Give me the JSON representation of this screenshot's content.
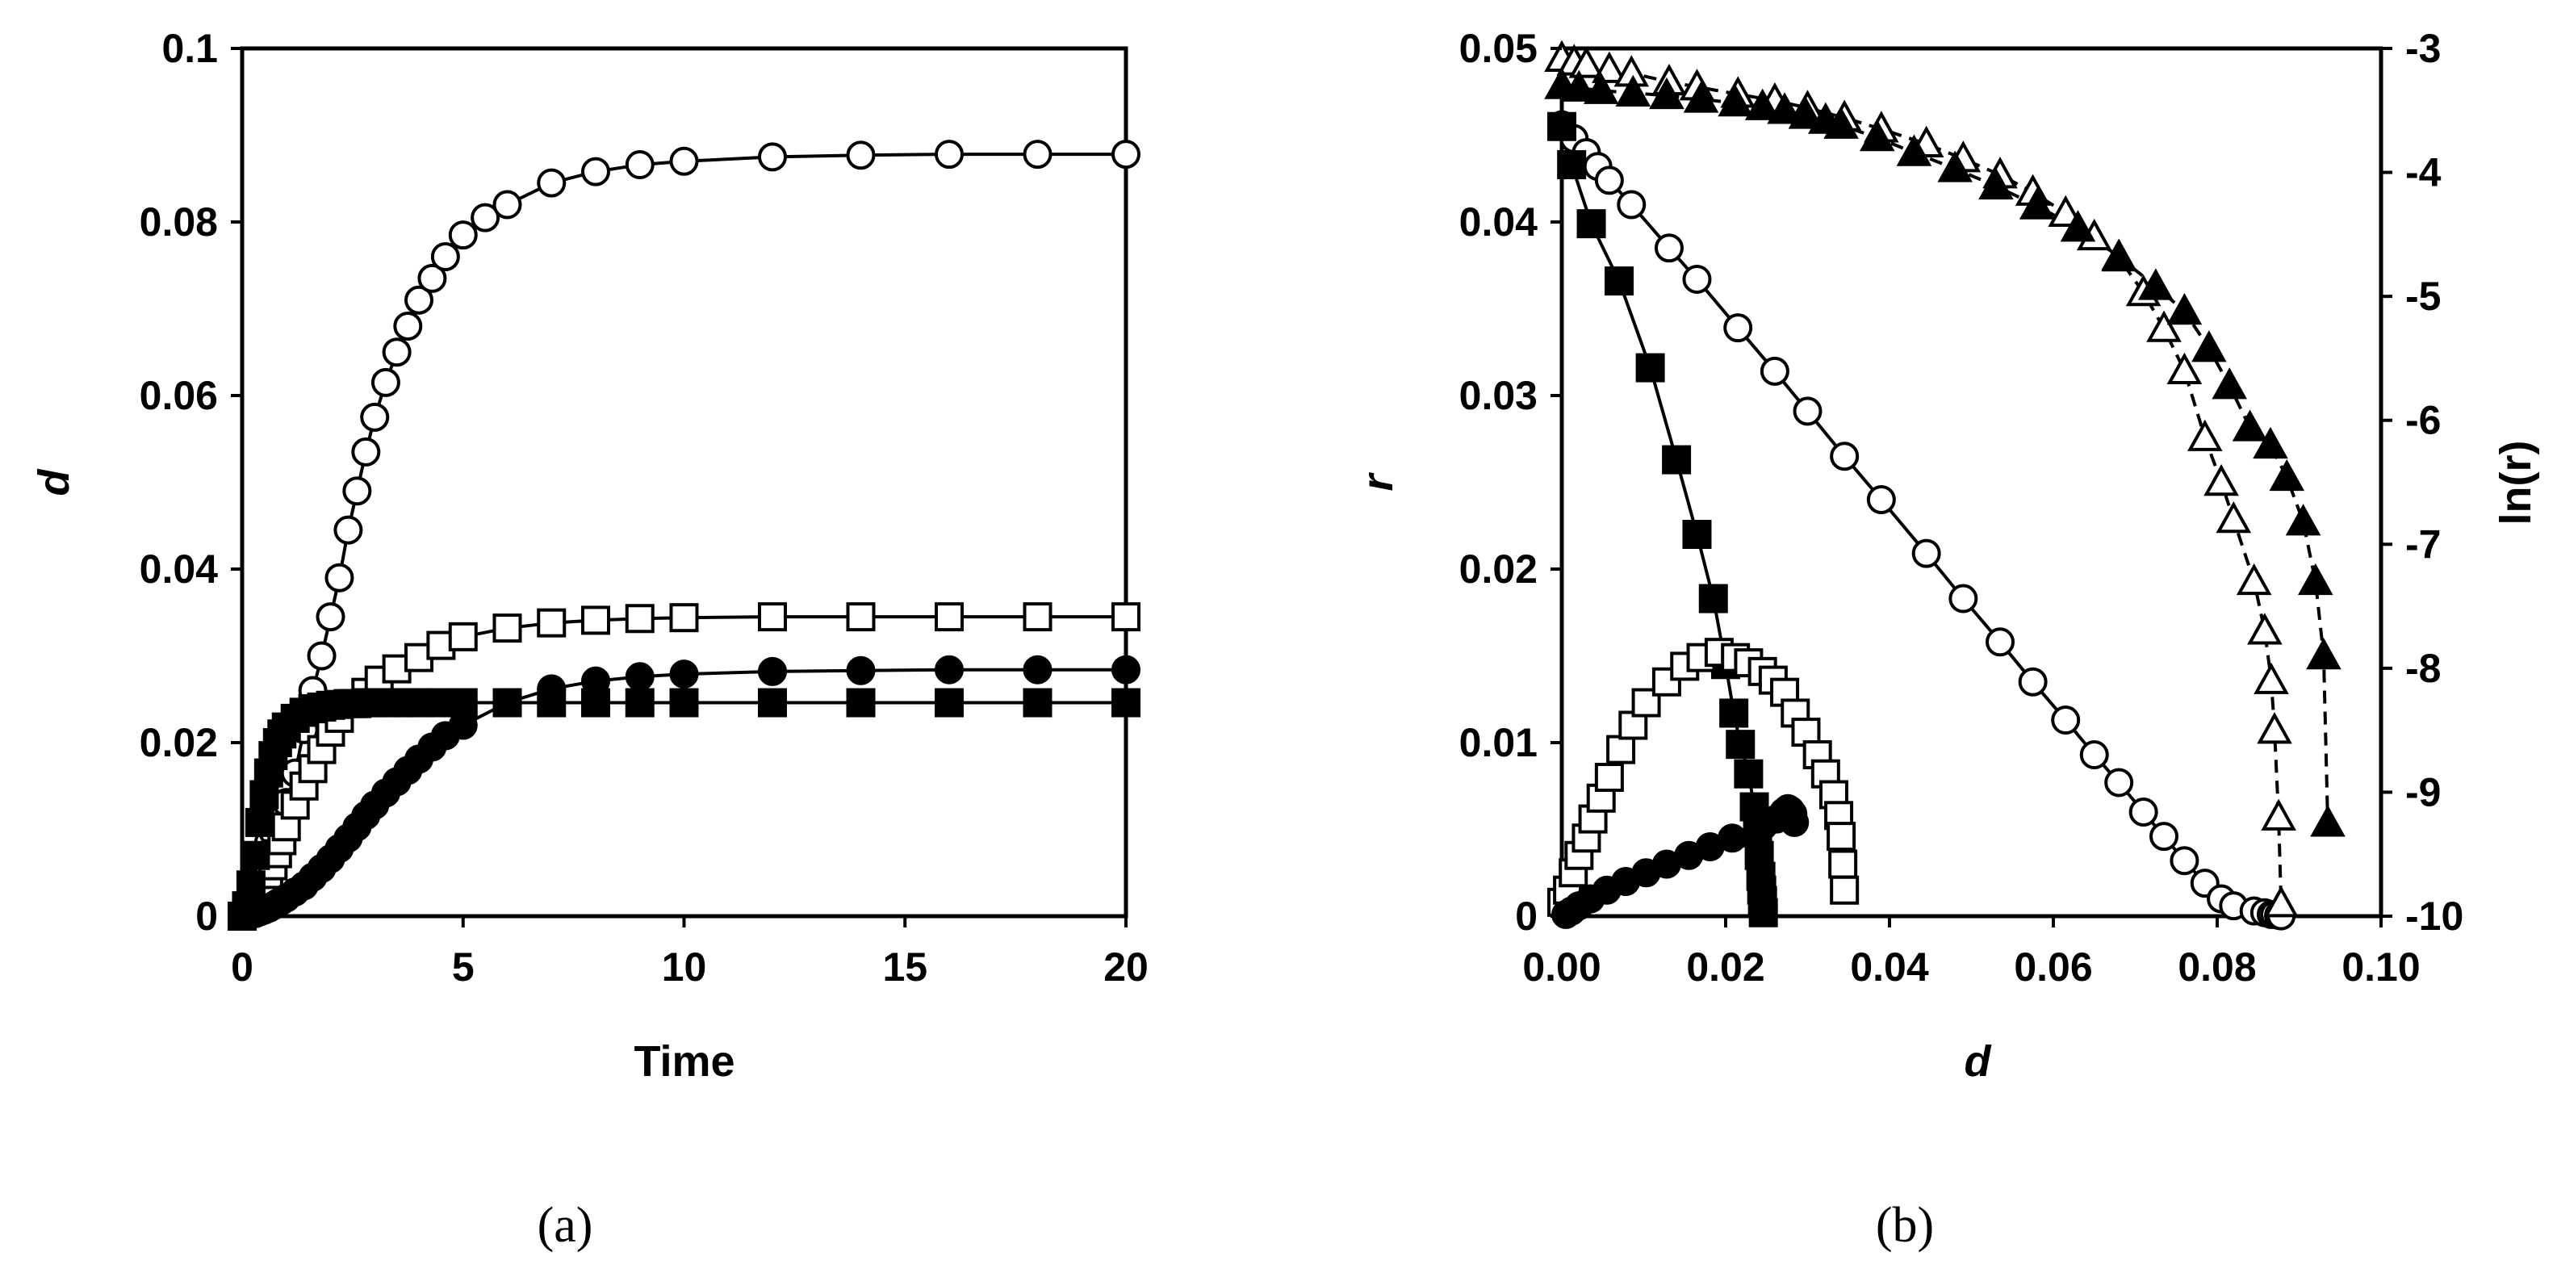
{
  "chart_data": [
    {
      "type": "scatter",
      "panel_label": "(a)",
      "xlabel": "Time",
      "ylabel": "d",
      "xlim": [
        0,
        20
      ],
      "ylim": [
        0,
        0.1
      ],
      "xticks": [
        "0",
        "5",
        "10",
        "15",
        "20"
      ],
      "yticks": [
        "0",
        "0.02",
        "0.04",
        "0.06",
        "0.08",
        "0.1"
      ],
      "grid": false,
      "legend": "none",
      "series": [
        {
          "marker": "open-circle",
          "line": "solid",
          "x": [
            0,
            0.1,
            0.2,
            0.3,
            0.4,
            0.5,
            0.6,
            0.7,
            0.8,
            0.9,
            1,
            1.2,
            1.4,
            1.6,
            1.8,
            2,
            2.2,
            2.4,
            2.6,
            2.8,
            3,
            3.25,
            3.5,
            3.75,
            4,
            4.3,
            4.6,
            5,
            5.5,
            6,
            7,
            8,
            9,
            10,
            12,
            14,
            16,
            18,
            20
          ],
          "y": [
            0,
            0.0015,
            0.003,
            0.0044,
            0.0058,
            0.0072,
            0.0085,
            0.0097,
            0.0109,
            0.012,
            0.0131,
            0.0165,
            0.0215,
            0.026,
            0.03,
            0.0345,
            0.039,
            0.0445,
            0.049,
            0.0535,
            0.0575,
            0.0615,
            0.065,
            0.068,
            0.071,
            0.0735,
            0.076,
            0.0785,
            0.0805,
            0.082,
            0.0845,
            0.0858,
            0.0866,
            0.087,
            0.0875,
            0.0877,
            0.0878,
            0.0878,
            0.0878
          ]
        },
        {
          "marker": "open-square",
          "line": "solid",
          "x": [
            0,
            0.1,
            0.2,
            0.3,
            0.4,
            0.5,
            0.6,
            0.7,
            0.8,
            0.9,
            1,
            1.2,
            1.4,
            1.6,
            1.8,
            2,
            2.2,
            2.5,
            2.8,
            3.1,
            3.5,
            4,
            4.5,
            5,
            6,
            7,
            8,
            9,
            10,
            12,
            14,
            16,
            18,
            20
          ],
          "y": [
            0,
            0.0007,
            0.0014,
            0.0021,
            0.003,
            0.0038,
            0.0048,
            0.0058,
            0.0072,
            0.0087,
            0.0103,
            0.0128,
            0.015,
            0.017,
            0.0192,
            0.0212,
            0.0228,
            0.0245,
            0.0258,
            0.0272,
            0.0285,
            0.0298,
            0.0312,
            0.0322,
            0.0332,
            0.0338,
            0.0341,
            0.0343,
            0.0344,
            0.0345,
            0.0345,
            0.0345,
            0.0345,
            0.0345
          ]
        },
        {
          "marker": "filled-square",
          "line": "solid",
          "x": [
            0,
            0.1,
            0.2,
            0.3,
            0.4,
            0.5,
            0.6,
            0.7,
            0.8,
            0.9,
            1,
            1.2,
            1.4,
            1.6,
            1.8,
            2,
            2.2,
            2.4,
            2.6,
            2.8,
            3,
            3.25,
            3.5,
            3.75,
            4,
            4.5,
            5,
            6,
            7,
            8,
            9,
            10,
            12,
            14,
            16,
            18,
            20
          ],
          "y": [
            0,
            0.0012,
            0.0036,
            0.007,
            0.0108,
            0.014,
            0.0165,
            0.0185,
            0.02,
            0.021,
            0.0218,
            0.0228,
            0.0235,
            0.0239,
            0.0241,
            0.0243,
            0.0244,
            0.0245,
            0.0245,
            0.0246,
            0.0246,
            0.0246,
            0.0246,
            0.0246,
            0.0246,
            0.0246,
            0.0246,
            0.0246,
            0.0246,
            0.0246,
            0.0246,
            0.0246,
            0.0246,
            0.0246,
            0.0246,
            0.0246,
            0.0246
          ]
        },
        {
          "marker": "filled-circle",
          "line": "solid",
          "x": [
            0,
            0.1,
            0.2,
            0.3,
            0.4,
            0.5,
            0.6,
            0.7,
            0.8,
            0.9,
            1,
            1.2,
            1.4,
            1.6,
            1.8,
            2,
            2.2,
            2.4,
            2.6,
            2.8,
            3,
            3.25,
            3.5,
            3.75,
            4,
            4.3,
            4.6,
            5,
            6,
            7,
            8,
            9,
            10,
            12,
            14,
            16,
            18,
            20
          ],
          "y": [
            0,
            0.0001,
            0.0002,
            0.0003,
            0.0005,
            0.0007,
            0.0009,
            0.0012,
            0.0015,
            0.0018,
            0.0021,
            0.0028,
            0.0035,
            0.0045,
            0.0055,
            0.0066,
            0.0078,
            0.009,
            0.0103,
            0.0116,
            0.0128,
            0.0142,
            0.0155,
            0.0168,
            0.0181,
            0.0195,
            0.0208,
            0.022,
            0.0246,
            0.0262,
            0.0271,
            0.0276,
            0.0279,
            0.0282,
            0.0283,
            0.0284,
            0.0284,
            0.0284
          ]
        }
      ]
    },
    {
      "type": "scatter",
      "panel_label": "(b)",
      "xlabel": "d",
      "ylabel": "r",
      "y2label": "ln(r)",
      "xlim": [
        0,
        0.1
      ],
      "ylim": [
        0,
        0.05
      ],
      "y2lim": [
        -10,
        -3
      ],
      "xticks": [
        "0.00",
        "0.02",
        "0.04",
        "0.06",
        "0.08",
        "0.10"
      ],
      "yticks": [
        "0",
        "0.01",
        "0.02",
        "0.03",
        "0.04",
        "0.05"
      ],
      "y2ticks": [
        "-10",
        "-9",
        "-8",
        "-7",
        "-6",
        "-5",
        "-4",
        "-3"
      ],
      "grid": false,
      "legend": "none",
      "series": [
        {
          "marker": "open-circle",
          "line": "solid",
          "axis": "left",
          "x": [
            0,
            0.0015,
            0.003,
            0.0044,
            0.0058,
            0.0085,
            0.0131,
            0.0165,
            0.0215,
            0.026,
            0.03,
            0.0345,
            0.039,
            0.0445,
            0.049,
            0.0535,
            0.0575,
            0.0615,
            0.065,
            0.068,
            0.071,
            0.0735,
            0.076,
            0.0785,
            0.0805,
            0.082,
            0.0845,
            0.0858,
            0.0866,
            0.087,
            0.0875,
            0.0878
          ],
          "y": [
            0.0456,
            0.0448,
            0.044,
            0.0432,
            0.0424,
            0.041,
            0.0385,
            0.0367,
            0.0339,
            0.0314,
            0.0291,
            0.0265,
            0.024,
            0.0209,
            0.0183,
            0.0158,
            0.0135,
            0.0113,
            0.0093,
            0.0077,
            0.006,
            0.0046,
            0.0032,
            0.0019,
            0.001,
            0.0006,
            0.0003,
            0.0002,
            0.0001,
            0.0001,
            5e-05,
            2e-05
          ]
        },
        {
          "marker": "filled-square",
          "line": "solid",
          "axis": "left",
          "x": [
            0,
            0.0012,
            0.0036,
            0.007,
            0.0108,
            0.014,
            0.0165,
            0.0185,
            0.02,
            0.021,
            0.0218,
            0.0228,
            0.0235,
            0.0239,
            0.0241,
            0.0243,
            0.0244,
            0.0245,
            0.0246
          ],
          "y": [
            0.0455,
            0.0433,
            0.0399,
            0.0366,
            0.0316,
            0.0263,
            0.022,
            0.0183,
            0.0145,
            0.0117,
            0.0099,
            0.0082,
            0.0063,
            0.0048,
            0.0035,
            0.0023,
            0.0015,
            0.0009,
            0.0002
          ]
        },
        {
          "marker": "open-square",
          "line": "solid",
          "axis": "left",
          "x": [
            0,
            0.0007,
            0.0014,
            0.0021,
            0.003,
            0.0038,
            0.0048,
            0.0058,
            0.0072,
            0.0087,
            0.0103,
            0.0128,
            0.015,
            0.017,
            0.0192,
            0.0212,
            0.0228,
            0.0245,
            0.0258,
            0.0272,
            0.0285,
            0.0298,
            0.0312,
            0.0322,
            0.0332,
            0.0338,
            0.0341,
            0.0343,
            0.0345
          ],
          "y": [
            0.0008,
            0.0015,
            0.0025,
            0.0035,
            0.0045,
            0.0056,
            0.0068,
            0.008,
            0.0096,
            0.011,
            0.0123,
            0.0135,
            0.0144,
            0.0149,
            0.0152,
            0.0149,
            0.0146,
            0.0141,
            0.0136,
            0.0129,
            0.0117,
            0.0106,
            0.0093,
            0.0082,
            0.007,
            0.0058,
            0.0046,
            0.003,
            0.0015
          ]
        },
        {
          "marker": "filled-circle",
          "line": "solid",
          "axis": "left",
          "x": [
            0.0005,
            0.0012,
            0.0021,
            0.0035,
            0.0055,
            0.0078,
            0.0103,
            0.0128,
            0.0155,
            0.0181,
            0.0208,
            0.0246,
            0.0262,
            0.0271,
            0.0276,
            0.0279,
            0.0282,
            0.0284
          ],
          "y": [
            0.0001,
            0.0003,
            0.0006,
            0.001,
            0.0015,
            0.002,
            0.0025,
            0.003,
            0.0035,
            0.004,
            0.0045,
            0.0052,
            0.0056,
            0.006,
            0.0062,
            0.0061,
            0.0059,
            0.0054
          ],
          "x_extra": [
            0.0286,
            0.0288,
            0.029
          ],
          "note_free": true
        },
        {
          "marker": "open-triangle",
          "line": "dashed",
          "axis": "right",
          "x": [
            0,
            0.0015,
            0.003,
            0.0058,
            0.0085,
            0.0131,
            0.0165,
            0.0215,
            0.026,
            0.03,
            0.0345,
            0.039,
            0.0445,
            0.049,
            0.0535,
            0.0575,
            0.0615,
            0.065,
            0.068,
            0.071,
            0.0735,
            0.076,
            0.0785,
            0.0805,
            0.082,
            0.0845,
            0.0858,
            0.0866,
            0.087,
            0.0875,
            0.0878
          ],
          "y": [
            -3.08,
            -3.11,
            -3.13,
            -3.17,
            -3.2,
            -3.27,
            -3.31,
            -3.37,
            -3.42,
            -3.48,
            -3.56,
            -3.65,
            -3.77,
            -3.89,
            -4.02,
            -4.16,
            -4.33,
            -4.52,
            -4.69,
            -4.97,
            -5.26,
            -5.6,
            -6.14,
            -6.5,
            -6.8,
            -7.3,
            -7.7,
            -8.1,
            -8.5,
            -9.2,
            -9.9
          ]
        },
        {
          "marker": "filled-triangle",
          "line": "dashed",
          "axis": "right",
          "x": [
            0,
            0.0021,
            0.0048,
            0.0087,
            0.0128,
            0.017,
            0.0212,
            0.0245,
            0.0272,
            0.0298,
            0.0322,
            0.0341,
            0.0385,
            0.043,
            0.048,
            0.053,
            0.058,
            0.063,
            0.068,
            0.0725,
            0.076,
            0.079,
            0.0815,
            0.084,
            0.0865,
            0.0885,
            0.0905,
            0.092,
            0.093,
            0.0935
          ],
          "y": [
            -3.3,
            -3.32,
            -3.34,
            -3.36,
            -3.38,
            -3.41,
            -3.44,
            -3.47,
            -3.5,
            -3.54,
            -3.58,
            -3.62,
            -3.72,
            -3.84,
            -3.97,
            -4.11,
            -4.27,
            -4.45,
            -4.68,
            -4.92,
            -5.12,
            -5.42,
            -5.72,
            -6.06,
            -6.2,
            -6.46,
            -6.82,
            -7.3,
            -7.9,
            -9.25
          ]
        }
      ]
    }
  ]
}
